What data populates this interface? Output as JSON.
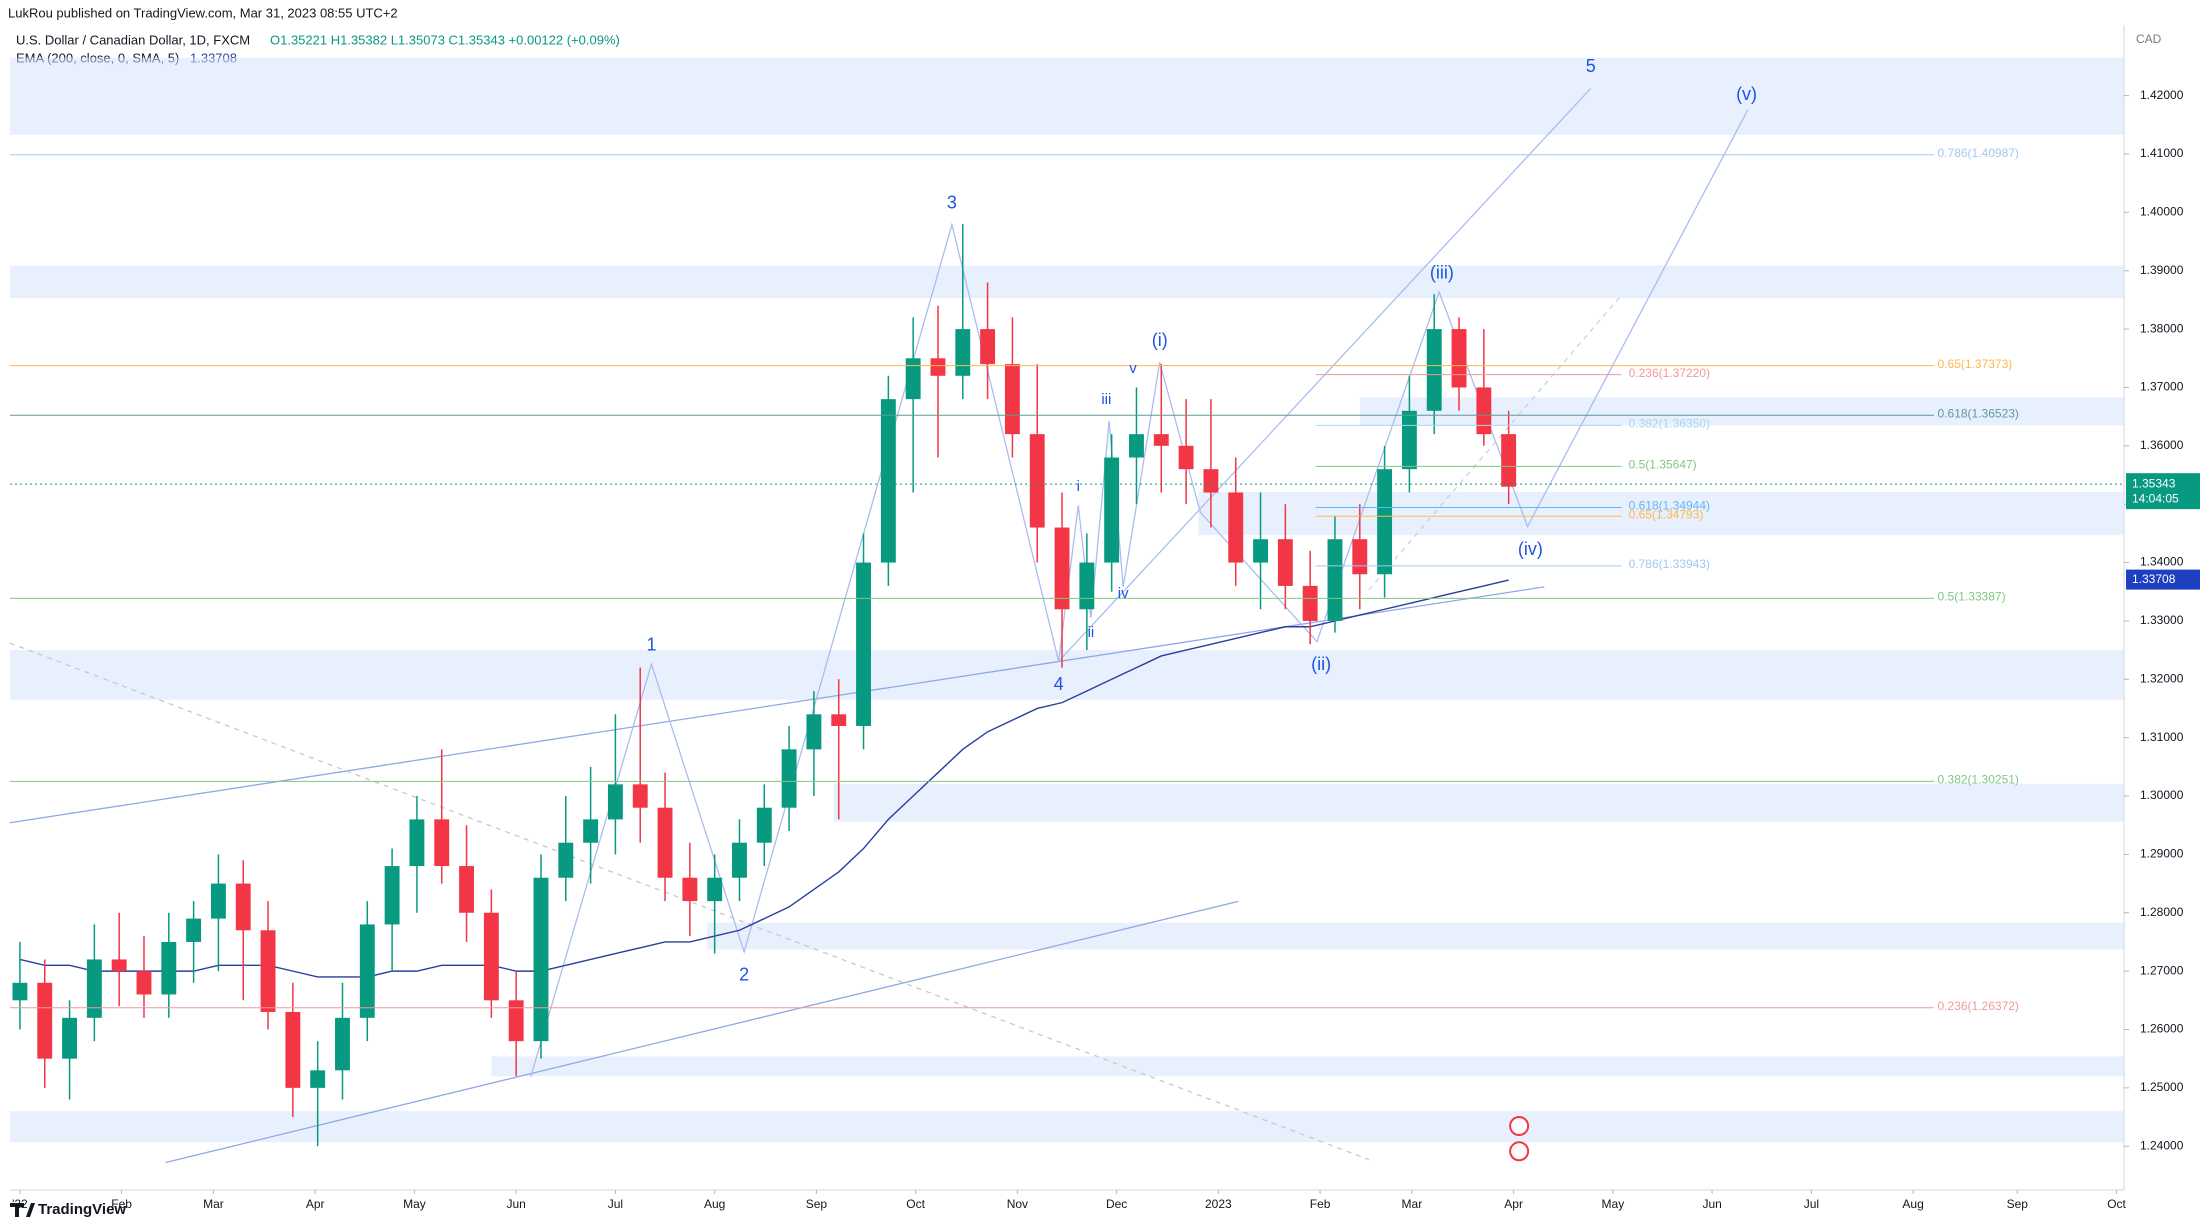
{
  "header": {
    "publisher": "LukRou published on TradingView.com, Mar 31, 2023 08:55 UTC+2",
    "symbol": "U.S. Dollar / Canadian Dollar, 1D, FXCM",
    "ohlc": "O1.35221 H1.35382 L1.35073 C1.35343 +0.00122 (+0.09%)",
    "indicator": "EMA (200, close, 0, SMA, 5)",
    "indicator_value": "1.33708"
  },
  "footer": {
    "brand": "TradingView"
  },
  "chart_data": {
    "type": "candlestick",
    "currency": "CAD",
    "ylim": [
      1.2325,
      1.4321
    ],
    "yticks": [
      {
        "value": 1.24,
        "label": "1.24000"
      },
      {
        "value": 1.25,
        "label": "1.25000"
      },
      {
        "value": 1.26,
        "label": "1.26000"
      },
      {
        "value": 1.27,
        "label": "1.27000"
      },
      {
        "value": 1.28,
        "label": "1.28000"
      },
      {
        "value": 1.29,
        "label": "1.29000"
      },
      {
        "value": 1.3,
        "label": "1.30000"
      },
      {
        "value": 1.31,
        "label": "1.31000"
      },
      {
        "value": 1.32,
        "label": "1.32000"
      },
      {
        "value": 1.33,
        "label": "1.33000"
      },
      {
        "value": 1.34,
        "label": "1.34000"
      },
      {
        "value": 1.35,
        "label": "1.35000"
      },
      {
        "value": 1.36,
        "label": "1.36000"
      },
      {
        "value": 1.37,
        "label": "1.37000"
      },
      {
        "value": 1.38,
        "label": "1.38000"
      },
      {
        "value": 1.39,
        "label": "1.39000"
      },
      {
        "value": 1.4,
        "label": "1.40000"
      },
      {
        "value": 1.41,
        "label": "1.41000"
      },
      {
        "value": 1.42,
        "label": "1.42000"
      }
    ],
    "xlim": [
      -0.4,
      84.8
    ],
    "xticks": [
      {
        "value": 0,
        "label": "'22"
      },
      {
        "value": 4.1,
        "label": "Feb"
      },
      {
        "value": 7.8,
        "label": "Mar"
      },
      {
        "value": 11.9,
        "label": "Apr"
      },
      {
        "value": 15.9,
        "label": "May"
      },
      {
        "value": 20,
        "label": "Jun"
      },
      {
        "value": 24,
        "label": "Jul"
      },
      {
        "value": 28,
        "label": "Aug"
      },
      {
        "value": 32.1,
        "label": "Sep"
      },
      {
        "value": 36.1,
        "label": "Oct"
      },
      {
        "value": 40.2,
        "label": "Nov"
      },
      {
        "value": 44.2,
        "label": "Dec"
      },
      {
        "value": 48.3,
        "label": "2023"
      },
      {
        "value": 52.4,
        "label": "Feb"
      },
      {
        "value": 56.1,
        "label": "Mar"
      },
      {
        "value": 60.2,
        "label": "Apr"
      },
      {
        "value": 64.2,
        "label": "May"
      },
      {
        "value": 68.2,
        "label": "Jun"
      },
      {
        "value": 72.2,
        "label": "Jul"
      },
      {
        "value": 76.3,
        "label": "Aug"
      },
      {
        "value": 80.5,
        "label": "Sep"
      },
      {
        "value": 84.5,
        "label": "Oct"
      }
    ],
    "open": [
      1.265,
      1.268,
      1.255,
      1.262,
      1.272,
      1.27,
      1.266,
      1.275,
      1.279,
      1.285,
      1.277,
      1.263,
      1.25,
      1.253,
      1.262,
      1.278,
      1.288,
      1.296,
      1.288,
      1.28,
      1.265,
      1.258,
      1.286,
      1.292,
      1.296,
      1.302,
      1.298,
      1.286,
      1.282,
      1.286,
      1.292,
      1.298,
      1.308,
      1.314,
      1.312,
      1.34,
      1.368,
      1.375,
      1.372,
      1.38,
      1.374,
      1.362,
      1.346,
      1.332,
      1.34,
      1.358,
      1.362,
      1.36,
      1.356,
      1.352,
      1.34,
      1.344,
      1.336,
      1.33,
      1.344,
      1.338,
      1.356,
      1.366,
      1.38,
      1.37,
      1.362
    ],
    "high": [
      1.275,
      1.272,
      1.265,
      1.278,
      1.28,
      1.276,
      1.28,
      1.282,
      1.29,
      1.289,
      1.282,
      1.268,
      1.258,
      1.268,
      1.282,
      1.291,
      1.3,
      1.308,
      1.295,
      1.284,
      1.27,
      1.29,
      1.3,
      1.305,
      1.314,
      1.322,
      1.304,
      1.292,
      1.29,
      1.296,
      1.302,
      1.312,
      1.318,
      1.32,
      1.345,
      1.372,
      1.382,
      1.384,
      1.398,
      1.388,
      1.382,
      1.374,
      1.352,
      1.345,
      1.362,
      1.37,
      1.374,
      1.368,
      1.368,
      1.358,
      1.352,
      1.35,
      1.342,
      1.348,
      1.35,
      1.36,
      1.372,
      1.386,
      1.382,
      1.38,
      1.366
    ],
    "low": [
      1.26,
      1.25,
      1.248,
      1.258,
      1.264,
      1.262,
      1.262,
      1.268,
      1.27,
      1.265,
      1.26,
      1.245,
      1.24,
      1.248,
      1.258,
      1.27,
      1.28,
      1.285,
      1.275,
      1.262,
      1.252,
      1.255,
      1.282,
      1.285,
      1.29,
      1.292,
      1.282,
      1.276,
      1.273,
      1.282,
      1.288,
      1.294,
      1.3,
      1.296,
      1.308,
      1.336,
      1.352,
      1.358,
      1.368,
      1.368,
      1.358,
      1.34,
      1.322,
      1.325,
      1.335,
      1.35,
      1.352,
      1.35,
      1.346,
      1.336,
      1.332,
      1.332,
      1.326,
      1.328,
      1.332,
      1.334,
      1.352,
      1.362,
      1.366,
      1.36,
      1.35
    ],
    "close": [
      1.268,
      1.255,
      1.262,
      1.272,
      1.27,
      1.266,
      1.275,
      1.279,
      1.285,
      1.277,
      1.263,
      1.25,
      1.253,
      1.262,
      1.278,
      1.288,
      1.296,
      1.288,
      1.28,
      1.265,
      1.258,
      1.286,
      1.292,
      1.296,
      1.302,
      1.298,
      1.286,
      1.282,
      1.286,
      1.292,
      1.298,
      1.308,
      1.314,
      1.312,
      1.34,
      1.368,
      1.375,
      1.372,
      1.38,
      1.374,
      1.362,
      1.346,
      1.332,
      1.34,
      1.358,
      1.362,
      1.36,
      1.356,
      1.352,
      1.34,
      1.344,
      1.336,
      1.33,
      1.344,
      1.338,
      1.356,
      1.366,
      1.38,
      1.37,
      1.362,
      1.353
    ],
    "up_color": "#089981",
    "down_color": "#f23645",
    "ema": [
      1.272,
      1.271,
      1.271,
      1.27,
      1.27,
      1.27,
      1.27,
      1.27,
      1.271,
      1.271,
      1.271,
      1.27,
      1.269,
      1.269,
      1.269,
      1.27,
      1.27,
      1.271,
      1.271,
      1.271,
      1.27,
      1.27,
      1.271,
      1.272,
      1.273,
      1.274,
      1.275,
      1.275,
      1.276,
      1.277,
      1.279,
      1.281,
      1.284,
      1.287,
      1.291,
      1.296,
      1.3,
      1.304,
      1.308,
      1.311,
      1.313,
      1.315,
      1.316,
      1.318,
      1.32,
      1.322,
      1.324,
      1.325,
      1.326,
      1.327,
      1.328,
      1.329,
      1.329,
      1.33,
      1.331,
      1.332,
      1.333,
      1.334,
      1.335,
      1.336,
      1.337
    ],
    "ema_color": "#2a3f9c",
    "ema_last": 1.33708,
    "last_price": 1.35343,
    "countdown": "14:04:05",
    "levels": [
      {
        "value": 1.40987,
        "label": "0.786(1.40987)",
        "color": "#9fc9f0"
      },
      {
        "value": 1.37373,
        "label": "0.65(1.37373)",
        "color": "#ffb74d"
      },
      {
        "value": 1.3722,
        "label": "0.236(1.37220)",
        "color": "#ef9a9a"
      },
      {
        "value": 1.36523,
        "label": "0.618(1.36523)",
        "color": "#5b9b98"
      },
      {
        "value": 1.3635,
        "label": "0.382(1.36350)",
        "color": "#a5d6f0"
      },
      {
        "value": 1.35647,
        "label": "0.5(1.35647)",
        "color": "#81c784"
      },
      {
        "value": 1.34944,
        "label": "0.618(1.34944)",
        "color": "#64b5f6"
      },
      {
        "value": 1.34793,
        "label": "0.65(1.34793)",
        "color": "#ffb74d"
      },
      {
        "value": 1.33943,
        "label": "0.786(1.33943)",
        "color": "#9fc9f0"
      },
      {
        "value": 1.33387,
        "label": "0.5(1.33387)",
        "color": "#81c784"
      },
      {
        "value": 1.30251,
        "label": "0.382(1.30251)",
        "color": "#81c784"
      },
      {
        "value": 1.26372,
        "label": "0.236(1.26372)",
        "color": "#ef9a9a"
      }
    ],
    "zones": [
      [
        1.4133,
        1.4265
      ],
      [
        1.3853,
        1.3909
      ],
      [
        1.3447,
        1.3521
      ],
      [
        1.3635,
        1.3683
      ],
      [
        1.3165,
        1.325
      ],
      [
        1.2956,
        1.3021
      ],
      [
        1.2737,
        1.2783
      ],
      [
        1.252,
        1.2554
      ],
      [
        1.2407,
        1.246
      ]
    ],
    "wave_labels": [
      "1",
      "2",
      "3",
      "4",
      "5",
      "(i)",
      "(ii)",
      "(iii)",
      "(iv)",
      "(v)",
      "i",
      "ii",
      "iii",
      "iv",
      "v"
    ]
  }
}
